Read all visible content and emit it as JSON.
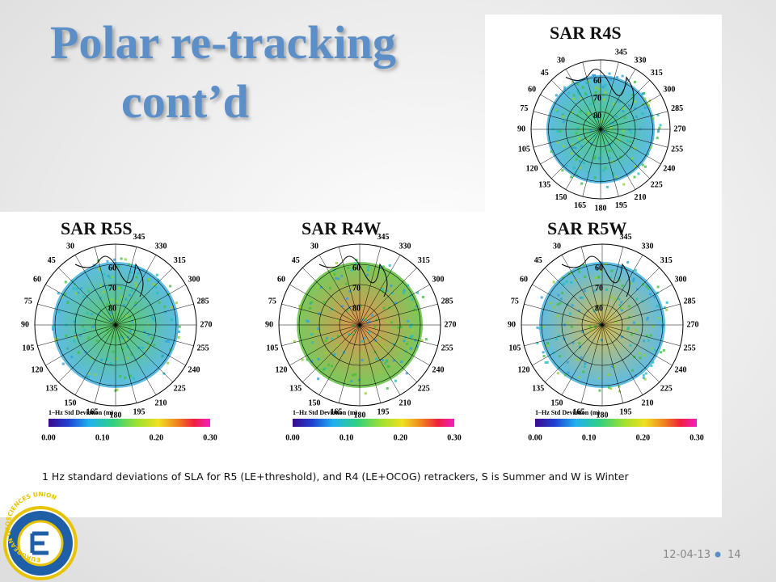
{
  "title": {
    "line1": "Polar re-tracking",
    "line2": "cont’d"
  },
  "panels": [
    {
      "label": "SAR R4S"
    },
    {
      "label": "SAR R5S"
    },
    {
      "label": "SAR R4W"
    },
    {
      "label": "SAR R5W"
    }
  ],
  "polar_plot": {
    "longitude_labels": [
      "30",
      "45",
      "60",
      "75",
      "90",
      "105",
      "120",
      "135",
      "150",
      "165",
      "180",
      "195",
      "210",
      "225",
      "240",
      "255",
      "270",
      "285",
      "300",
      "315",
      "330",
      "345"
    ],
    "latitude_labels": [
      "60",
      "70",
      "80"
    ],
    "colorbar": {
      "title": "1–Hz Std Deviation (m)",
      "ticks": [
        "0.00",
        "0.10",
        "0.20",
        "0.30"
      ]
    }
  },
  "caption": "1 Hz standard deviations of SLA for R5 (LE+threshold), and R4 (LE+OCOG) retrackers, S is Summer and W is Winter",
  "footer": {
    "date": "12-04-13",
    "page": "14"
  },
  "logo": {
    "text": "EUROPEAN GEOSCIENCES UNION"
  }
}
